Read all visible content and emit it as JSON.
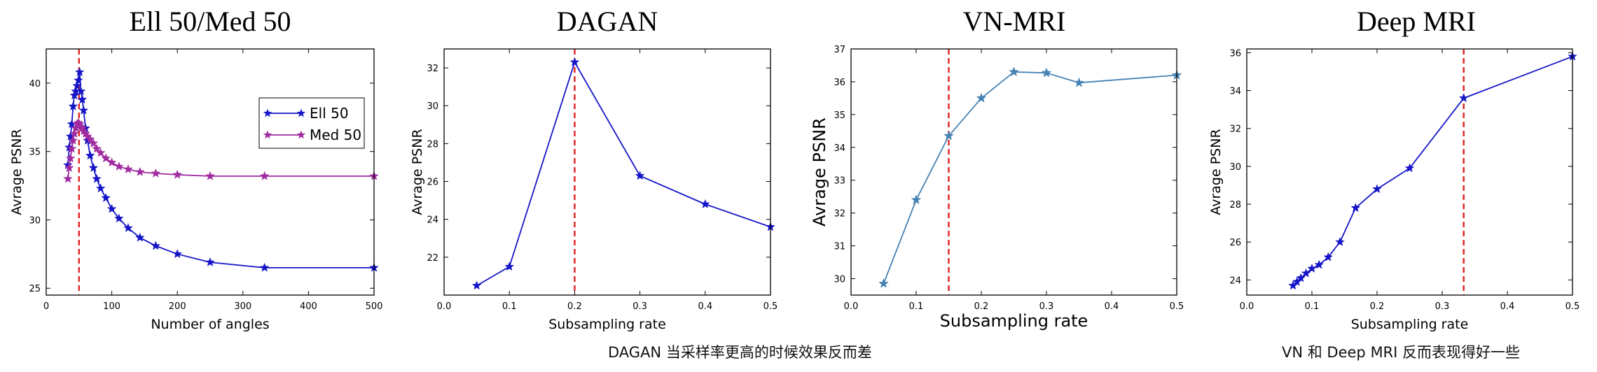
{
  "chart_data": [
    {
      "type": "line",
      "title": "Ell 50/Med 50",
      "xlabel": "Number of angles",
      "ylabel": "Avrage PSNR",
      "xlim": [
        0,
        500
      ],
      "ylim": [
        24.5,
        42.5
      ],
      "xticks": [
        0,
        100,
        200,
        300,
        400,
        500
      ],
      "yticks": [
        25,
        30,
        35,
        40
      ],
      "vline": 50,
      "legend_position": "right",
      "series": [
        {
          "name": "Ell 50",
          "color": "#1515c8",
          "x": [
            33,
            35,
            37,
            39,
            41,
            43,
            45,
            47,
            49,
            51,
            53,
            55,
            57,
            60,
            63,
            67,
            72,
            77,
            83,
            91,
            100,
            111,
            125,
            143,
            167,
            200,
            250,
            333,
            500
          ],
          "y": [
            34.0,
            35.3,
            36.1,
            37.0,
            38.3,
            39.1,
            39.4,
            39.8,
            40.2,
            40.8,
            39.4,
            38.8,
            38.0,
            36.7,
            35.8,
            34.7,
            33.8,
            33.0,
            32.3,
            31.6,
            30.8,
            30.1,
            29.4,
            28.7,
            28.1,
            27.5,
            26.9,
            26.5,
            26.5
          ]
        },
        {
          "name": "Med 50",
          "color": "#a02ba0",
          "x": [
            33,
            35,
            37,
            39,
            41,
            43,
            45,
            47,
            49,
            51,
            53,
            55,
            57,
            60,
            63,
            67,
            72,
            77,
            83,
            91,
            100,
            111,
            125,
            143,
            167,
            200,
            250,
            333,
            500
          ],
          "y": [
            33.0,
            33.8,
            34.5,
            35.2,
            35.8,
            36.3,
            36.7,
            37.0,
            37.1,
            37.0,
            36.8,
            36.7,
            36.5,
            36.3,
            36.1,
            35.9,
            35.6,
            35.2,
            34.9,
            34.5,
            34.2,
            33.9,
            33.7,
            33.5,
            33.4,
            33.3,
            33.2,
            33.2,
            33.2
          ]
        }
      ]
    },
    {
      "type": "line",
      "title": "DAGAN",
      "xlabel": "Subsampling rate",
      "ylabel": "Avrage PSNR",
      "xlim": [
        0.0,
        0.5
      ],
      "ylim": [
        20,
        33
      ],
      "xticks": [
        "0.0",
        "0.1",
        "0.2",
        "0.3",
        "0.4",
        "0.5"
      ],
      "yticks": [
        22,
        24,
        26,
        28,
        30,
        32
      ],
      "vline": 0.2,
      "series": [
        {
          "color": "#1515c8",
          "x": [
            0.05,
            0.1,
            0.2,
            0.3,
            0.4,
            0.5
          ],
          "y": [
            20.5,
            21.5,
            32.3,
            26.3,
            24.8,
            23.6
          ]
        }
      ]
    },
    {
      "type": "line",
      "title": "VN-MRI",
      "xlabel": "Subsampling rate",
      "ylabel": "Avrage PSNR",
      "xlim": [
        0.0,
        0.5
      ],
      "ylim": [
        29.5,
        37
      ],
      "xticks": [
        "0.0",
        "0.1",
        "0.2",
        "0.3",
        "0.4",
        "0.5"
      ],
      "yticks": [
        30,
        31,
        32,
        33,
        34,
        35,
        36,
        37
      ],
      "vline": 0.15,
      "series": [
        {
          "color": "#4682b4",
          "x": [
            0.05,
            0.1,
            0.15,
            0.2,
            0.25,
            0.3,
            0.35,
            0.5
          ],
          "y": [
            29.85,
            32.4,
            34.35,
            35.5,
            36.3,
            36.27,
            35.97,
            36.2
          ]
        }
      ]
    },
    {
      "type": "line",
      "title": "Deep MRI",
      "xlabel": "Subsampling rate",
      "ylabel": "Avrage PSNR",
      "xlim": [
        0.0,
        0.5
      ],
      "ylim": [
        23.2,
        36.2
      ],
      "xticks": [
        "0.0",
        "0.1",
        "0.2",
        "0.3",
        "0.4",
        "0.5"
      ],
      "yticks": [
        24,
        26,
        28,
        30,
        32,
        34,
        36
      ],
      "vline": 0.333,
      "series": [
        {
          "color": "#1515c8",
          "x": [
            0.071,
            0.077,
            0.083,
            0.091,
            0.1,
            0.111,
            0.125,
            0.143,
            0.167,
            0.2,
            0.25,
            0.333,
            0.5
          ],
          "y": [
            23.7,
            23.9,
            24.1,
            24.35,
            24.6,
            24.8,
            25.2,
            26.0,
            27.8,
            28.8,
            29.9,
            33.6,
            35.8
          ]
        }
      ]
    }
  ],
  "captions": {
    "dagan": "DAGAN 当采样率更高的时候效果反而差",
    "deepmri": "VN 和 Deep MRI 反而表现得好一些"
  },
  "colors": {
    "vline": "#e02020",
    "axis": "#000000"
  }
}
